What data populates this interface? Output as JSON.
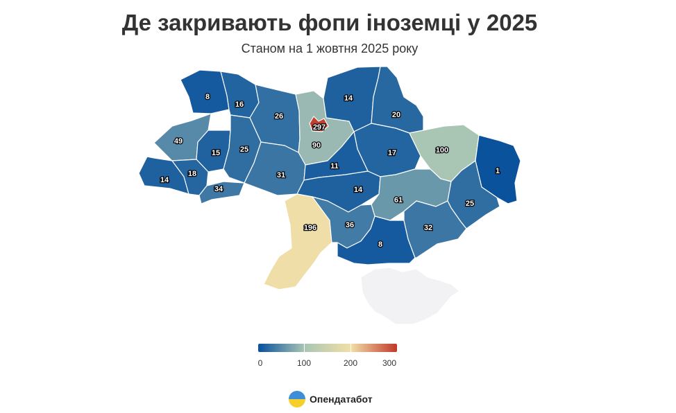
{
  "header": {
    "title": "Де закривають фопи іноземці у 2025",
    "subtitle": "Станом на 1 жовтня 2025 року"
  },
  "map": {
    "regions": [
      {
        "id": "volyn",
        "value": 8,
        "label": "8"
      },
      {
        "id": "rivne",
        "value": 16,
        "label": "16"
      },
      {
        "id": "zhytomyr",
        "value": 26,
        "label": "26"
      },
      {
        "id": "kyiv-oblast",
        "value": 90,
        "label": "90"
      },
      {
        "id": "kyiv-city",
        "value": 297,
        "label": "297"
      },
      {
        "id": "chernihiv",
        "value": 14,
        "label": "14"
      },
      {
        "id": "sumy",
        "value": 20,
        "label": "20"
      },
      {
        "id": "lviv",
        "value": 49,
        "label": "49"
      },
      {
        "id": "ternopil",
        "value": 15,
        "label": "15"
      },
      {
        "id": "khmelnytskyi",
        "value": 25,
        "label": "25"
      },
      {
        "id": "poltava",
        "value": 17,
        "label": "17"
      },
      {
        "id": "kharkiv",
        "value": 100,
        "label": "100"
      },
      {
        "id": "luhansk",
        "value": 1,
        "label": "1"
      },
      {
        "id": "zakarpattia",
        "value": 14,
        "label": "14"
      },
      {
        "id": "ivano-frankivsk",
        "value": 18,
        "label": "18"
      },
      {
        "id": "chernivtsi",
        "value": 34,
        "label": "34"
      },
      {
        "id": "vinnytsia",
        "value": 31,
        "label": "31"
      },
      {
        "id": "cherkasy",
        "value": 11,
        "label": "11"
      },
      {
        "id": "kirovohrad",
        "value": 14,
        "label": "14"
      },
      {
        "id": "dnipropetrovsk",
        "value": 61,
        "label": "61"
      },
      {
        "id": "donetsk",
        "value": 25,
        "label": "25"
      },
      {
        "id": "odesa",
        "value": 196,
        "label": "196"
      },
      {
        "id": "mykolaiv",
        "value": 36,
        "label": "36"
      },
      {
        "id": "kherson",
        "value": 8,
        "label": "8"
      },
      {
        "id": "zaporizhzhia",
        "value": 32,
        "label": "32"
      },
      {
        "id": "crimea",
        "value": null,
        "label": ""
      }
    ],
    "no_data_color": "#f2f2f4"
  },
  "legend": {
    "stops": [
      {
        "value": 0,
        "color": "#08519c"
      },
      {
        "value": 100,
        "color": "#a9c5b4"
      },
      {
        "value": 200,
        "color": "#f2dfa7"
      },
      {
        "value": 300,
        "color": "#c0392b"
      }
    ],
    "labels": [
      "0",
      "100",
      "200",
      "300"
    ]
  },
  "brand": {
    "name": "Опендатабот",
    "colors": {
      "top": "#3d8ed6",
      "bottom": "#f5cf2b"
    }
  }
}
